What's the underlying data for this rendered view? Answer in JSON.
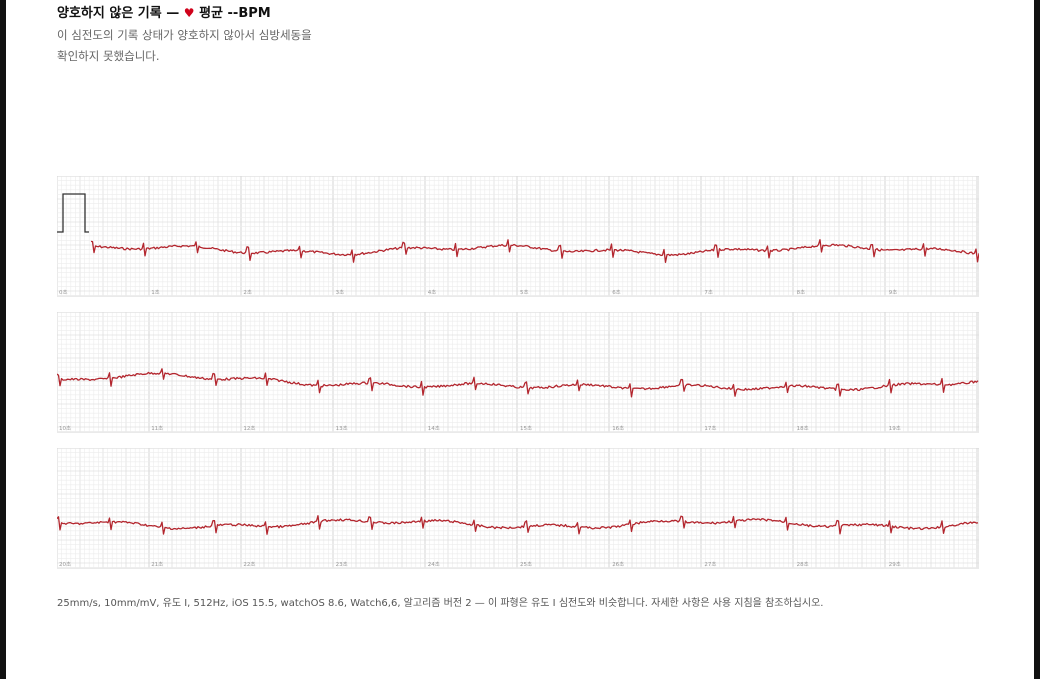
{
  "header": {
    "title_prefix": "양호하지 않은 기록 — ",
    "heart_symbol": "♥",
    "title_suffix": " 평균 --BPM",
    "description_line1": "이 심전도의 기록 상태가 양호하지 않아서 심방세동을",
    "description_line2": "확인하지 못했습니다."
  },
  "strips": [
    {
      "time_labels": [
        "0초",
        "1초",
        "2초",
        "3초",
        "4초",
        "5초",
        "6초",
        "7초",
        "8초",
        "9초"
      ]
    },
    {
      "time_labels": [
        "10초",
        "11초",
        "12초",
        "13초",
        "14초",
        "15초",
        "16초",
        "17초",
        "18초",
        "19초"
      ]
    },
    {
      "time_labels": [
        "20초",
        "21초",
        "22초",
        "23초",
        "24초",
        "25초",
        "26초",
        "27초",
        "28초",
        "29초"
      ]
    }
  ],
  "footer": {
    "text": "25mm/s, 10mm/mV, 유도 I, 512Hz, iOS 15.5, watchOS 8.6, Watch6,6, 알고리즘 버전 2 — 이 파형은 유도 I 심전도와 비슷합니다. 자세한 사항은 사용 지침을 참조하십시오."
  },
  "colors": {
    "trace": "#b3262e",
    "grid_minor": "#ececec",
    "grid_major": "#d6d6d6",
    "heart": "#d0021b"
  }
}
